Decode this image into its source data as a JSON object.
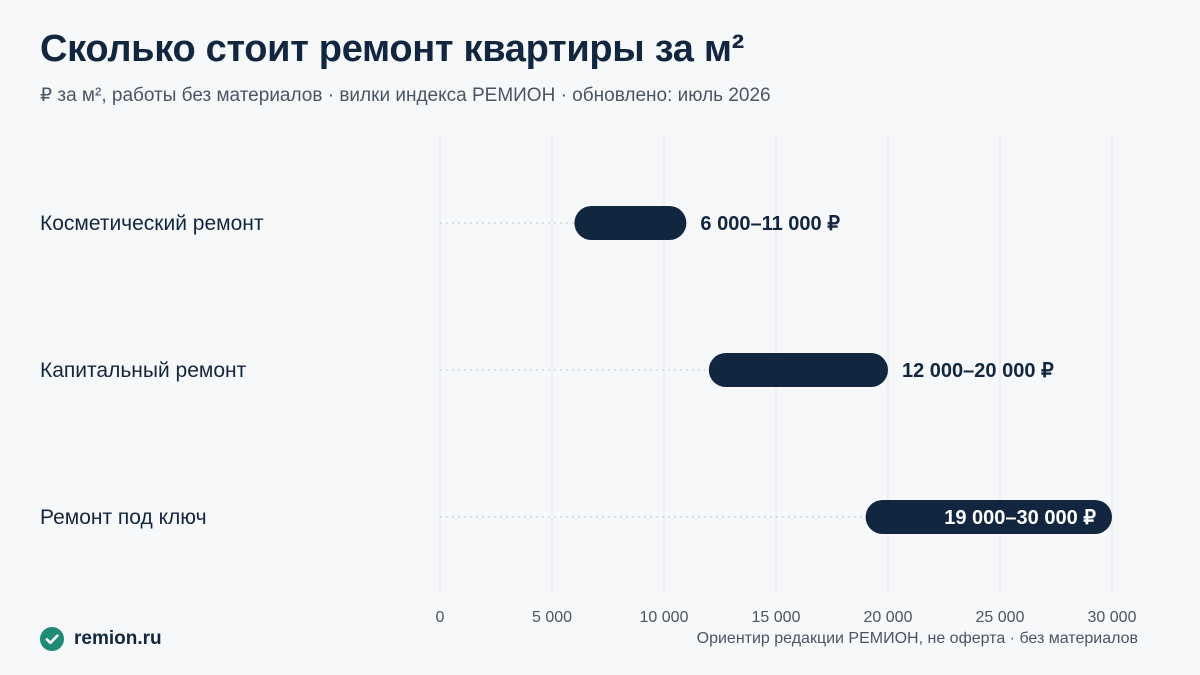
{
  "header": {
    "title": "Сколько стоит ремонт квартиры за м²",
    "subtitle": "₽ за м², работы без материалов · вилки индекса РЕМИОН · обновлено: июль 2026"
  },
  "chart_data": {
    "type": "bar",
    "categories": [
      "Косметический ремонт",
      "Капитальный ремонт",
      "Ремонт под ключ"
    ],
    "ranges": [
      [
        6000,
        11000
      ],
      [
        12000,
        20000
      ],
      [
        19000,
        30000
      ]
    ],
    "labels": [
      "6 000–11 000 ₽",
      "12 000–20 000 ₽",
      "19 000–30 000 ₽"
    ],
    "xlim": [
      0,
      30000
    ],
    "xticks": [
      0,
      5000,
      10000,
      15000,
      20000,
      25000,
      30000
    ],
    "xtick_labels": [
      "0",
      "5 000",
      "10 000",
      "15 000",
      "20 000",
      "25 000",
      "30 000"
    ],
    "grid": true,
    "bar_color": "#12263f",
    "grid_color": "#e3e6ea"
  },
  "footer": {
    "brand": "remion.ru",
    "brand_icon": "check-circle-icon",
    "brand_color": "#1f8a78",
    "note": "Ориентир редакции РЕМИОН, не оферта · без материалов"
  }
}
